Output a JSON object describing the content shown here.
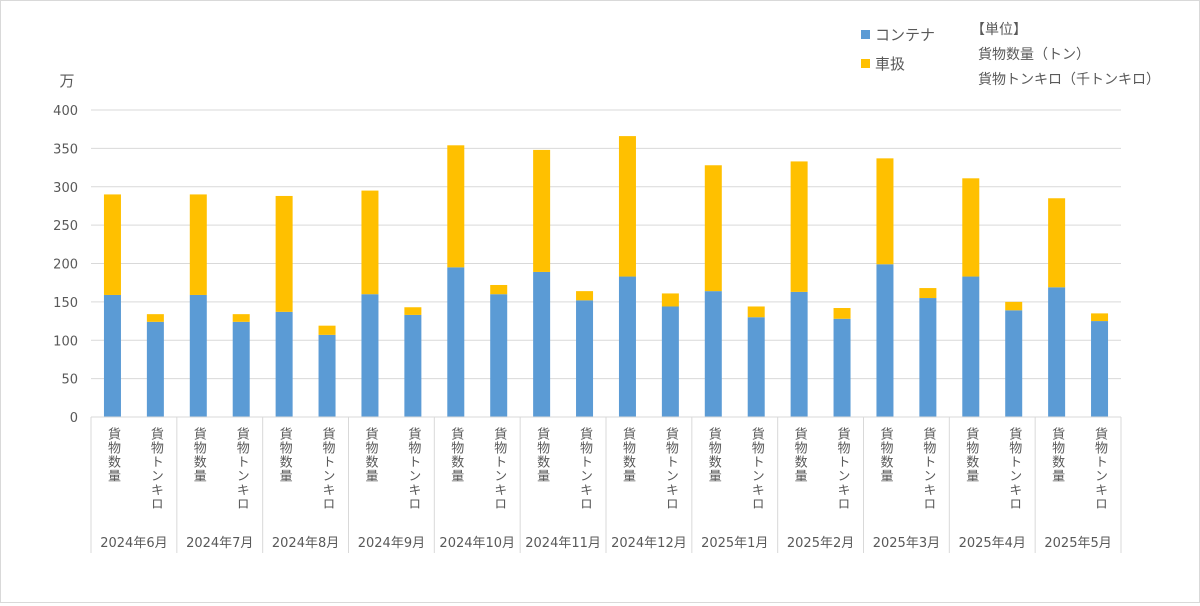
{
  "chart_data": {
    "type": "bar",
    "stacked": true,
    "y_unit": "万",
    "ylim": [
      0,
      400
    ],
    "yticks": [
      0,
      50,
      100,
      150,
      200,
      250,
      300,
      350,
      400
    ],
    "grid": true,
    "legend_position": "top-right",
    "subcategories": [
      "貨物数量",
      "貨物トンキロ"
    ],
    "groups": [
      "2024年6月",
      "2024年7月",
      "2024年8月",
      "2024年9月",
      "2024年10月",
      "2024年11月",
      "2024年12月",
      "2025年1月",
      "2025年2月",
      "2025年3月",
      "2025年4月",
      "2025年5月"
    ],
    "series": [
      {
        "name": "コンテナ",
        "color": "#5b9bd5",
        "values": [
          159,
          124,
          159,
          124,
          137,
          107,
          160,
          133,
          195,
          160,
          189,
          152,
          183,
          144,
          164,
          130,
          163,
          128,
          199,
          155,
          183,
          139,
          169,
          125
        ]
      },
      {
        "name": "車扱",
        "color": "#ffc000",
        "values": [
          131,
          10,
          131,
          10,
          151,
          12,
          135,
          10,
          159,
          12,
          159,
          12,
          183,
          17,
          164,
          14,
          170,
          14,
          138,
          13,
          128,
          11,
          116,
          10
        ]
      }
    ],
    "unit_note": {
      "title": "【単位】",
      "lines": [
        "貨物数量（トン）",
        "貨物トンキロ（千トンキロ）"
      ]
    }
  }
}
